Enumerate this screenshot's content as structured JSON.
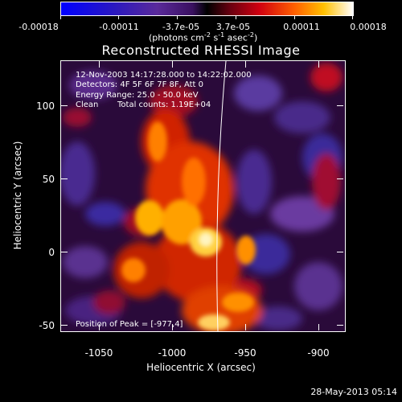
{
  "colorbar": {
    "tick_labels": [
      "-0.00018",
      "-0.00011",
      "-3.7e-05",
      "3.7e-05",
      "0.00011",
      "0.00018"
    ],
    "units": "(photons cm",
    "units_sup1": "-2",
    "units_mid": " s",
    "units_sup2": "-1",
    "units_mid2": " asec",
    "units_sup3": "-2",
    "units_end": ")"
  },
  "title": "Reconstructed RHESSI Image",
  "info": {
    "time_range": "12-Nov-2003 14:17:28.000 to 14:22:02.000",
    "detectors": "Detectors: 4F 5F 6F 7F 8F, Att 0",
    "energy": "Energy Range: 25.0 - 50.0 keV",
    "clean": "Clean",
    "counts": "Total counts: 1.19E+04",
    "peak": "Position of Peak = [-977,4]"
  },
  "axes": {
    "xlabel": "Heliocentric X (arcsec)",
    "ylabel": "Heliocentric Y (arcsec)",
    "y_ticks": [
      "100",
      "50",
      "0",
      "-50"
    ],
    "x_ticks": [
      "-1050",
      "-1000",
      "-950",
      "-900"
    ]
  },
  "footer": {
    "date": "28-May-2013 05:14"
  }
}
